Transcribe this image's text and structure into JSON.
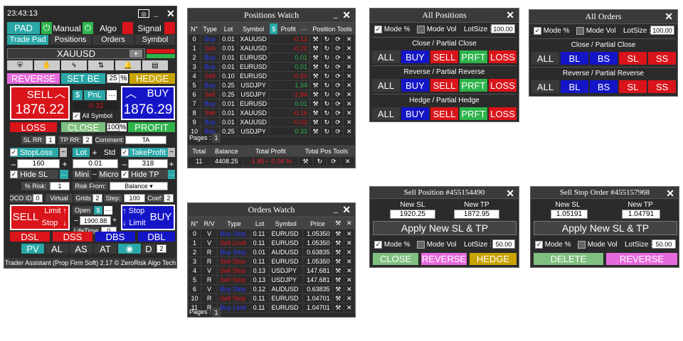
{
  "pad": {
    "clock": "23:43:13",
    "title_icons": [
      "minimize-icon",
      "close-icon"
    ],
    "top": {
      "pad": "PAD",
      "manual": "Manual",
      "algo": "Algo",
      "signal": "Signal"
    },
    "tabs": [
      "Trade Pad",
      "Positions",
      "Orders",
      "Symbol"
    ],
    "symbol": "XAUUSD",
    "reverse": "REVERSE",
    "set_be": "SET BE",
    "be_val": "25",
    "pct": "%",
    "hedge": "HEDGE",
    "sell": "SELL",
    "buy": "BUY",
    "dollar": "$",
    "pnl": "PnL",
    "dots": "···",
    "sell_price": "1876.22",
    "buy_price": "1876.29",
    "pnl_val": "-0.32",
    "all_symbol": "All Symbol",
    "loss": "LOSS",
    "close": "CLOSE",
    "close_pct": "100",
    "profit": "PROFIT",
    "sl_rr_lbl": "SL RR:",
    "sl_rr": "1",
    "tp_rr_lbl": "TP RR:",
    "tp_rr": "2",
    "comment_lbl": "Comment:",
    "comment": "TA",
    "stoploss": "StopLoss",
    "lot": "Lot",
    "std": "Std",
    "takeprofit": "TakeProfit",
    "sl_val": "160",
    "lot_val": "0.01",
    "tp_val": "318",
    "hide_sl": "Hide SL",
    "mini": "Mini",
    "micro": "Micro",
    "hide_tp": "Hide TP",
    "risk_lbl": "% Risk:",
    "risk": "1",
    "risk_from_lbl": "Risk From:",
    "risk_from": "Balance",
    "oco_lbl": "OCO ID:",
    "oco": "0",
    "virtual": "Virtual",
    "grids_lbl": "Grids",
    "grids": "2",
    "step_lbl": "Step:",
    "step": "100",
    "coef_lbl": "Coef:",
    "coef": "2",
    "open_lbl": "Open",
    "open_price": "1900.88",
    "lifetime_lbl": "LifeTime",
    "lifetime": "0",
    "limit": "Limit",
    "stop": "Stop",
    "dsl": "DSL",
    "dss": "DSS",
    "dbs": "DBS",
    "dbl": "DBL",
    "pv": "PV",
    "al": "AL",
    "as": "AS",
    "at": "AT",
    "d": "D",
    "d_val": "2",
    "footer": "Trader Assistant (Prop Firm Soft) 2.17 © ZeroRisk Algo Tech"
  },
  "positions_watch": {
    "title": "Positions Watch",
    "headers": [
      "N°",
      "Type",
      "Lot",
      "Symbol",
      "$",
      "Profit",
      "···",
      "Position Tools"
    ],
    "rows": [
      [
        "0",
        "Buy",
        "0.01",
        "XAUUSD",
        "-0.13"
      ],
      [
        "1",
        "Sell",
        "0.01",
        "XAUUSD",
        "-0.20"
      ],
      [
        "2",
        "Buy",
        "0.01",
        "EURUSD",
        "0.01"
      ],
      [
        "3",
        "Buy",
        "0.01",
        "EURUSD",
        "0.01"
      ],
      [
        "4",
        "Sell",
        "0.10",
        "EURUSD",
        "-0.20"
      ],
      [
        "5",
        "Buy",
        "0.25",
        "USDJPY",
        "1.34"
      ],
      [
        "6",
        "Sell",
        "0.25",
        "USDJPY",
        "-2.84"
      ],
      [
        "7",
        "Buy",
        "0.01",
        "EURUSD",
        "0.01"
      ],
      [
        "8",
        "Sell",
        "0.01",
        "XAUUSD",
        "-0.16"
      ],
      [
        "9",
        "Buy",
        "0.01",
        "XAUUSD",
        "-0.02"
      ],
      [
        "10",
        "Buy",
        "0.25",
        "USDJPY",
        "0.33"
      ]
    ],
    "pages_lbl": "Pages :",
    "page": "1",
    "total_headers": [
      "Total",
      "Balance",
      "Total Profit",
      "Total Pos Tools"
    ],
    "total_row": [
      "11",
      "4408.25",
      "-1.85 / -0.04 %"
    ]
  },
  "orders_watch": {
    "title": "Orders Watch",
    "headers": [
      "N°",
      "R/V",
      "Type",
      "Lot",
      "Symbol",
      "Price"
    ],
    "rows": [
      [
        "0",
        "V",
        "Buy Stop",
        "0.11",
        "EURUSD",
        "1.05350"
      ],
      [
        "1",
        "V",
        "Sell Limit",
        "0.11",
        "EURUSD",
        "1.05350"
      ],
      [
        "2",
        "R",
        "Buy Stop",
        "0.01",
        "AUDUSD",
        "0.63835"
      ],
      [
        "3",
        "R",
        "Sell Stop",
        "0.11",
        "EURUSD",
        "1.05350"
      ],
      [
        "4",
        "V",
        "Sell Stop",
        "0.13",
        "USDJPY",
        "147.681"
      ],
      [
        "5",
        "R",
        "Sell Stop",
        "0.13",
        "USDJPY",
        "147.681"
      ],
      [
        "6",
        "V",
        "Buy Stop",
        "0.12",
        "AUDUSD",
        "0.63835"
      ],
      [
        "10",
        "R",
        "Sell Stop",
        "0.11",
        "EURUSD",
        "1.04701"
      ],
      [
        "11",
        "R",
        "Buy Limit",
        "0.11",
        "EURUSD",
        "1.04701"
      ]
    ],
    "pages_lbl": "Pages :",
    "page": "1"
  },
  "all_positions": {
    "title": "All Positions",
    "mode_pct": "Mode %",
    "mode_vol": "Mode Vol",
    "lotsize_lbl": "LotSize :",
    "lotsize": "100.00",
    "sections": [
      {
        "title": "Close / Partial Close",
        "buttons": [
          "ALL",
          "BUY",
          "SELL",
          "PRFT",
          "LOSS"
        ]
      },
      {
        "title": "Reverse / Partial Reverse",
        "buttons": [
          "ALL",
          "BUY",
          "SELL",
          "PRFT",
          "LOSS"
        ]
      },
      {
        "title": "Hedge / Partial Hedge",
        "buttons": [
          "ALL",
          "BUY",
          "SELL",
          "PRFT",
          "LOSS"
        ]
      }
    ]
  },
  "all_orders": {
    "title": "All Orders",
    "mode_pct": "Mode %",
    "mode_vol": "Mode Vol",
    "lotsize_lbl": "LotSize :",
    "lotsize": "100.00",
    "sections": [
      {
        "title": "Close / Partial Close",
        "buttons": [
          "ALL",
          "BL",
          "BS",
          "SL",
          "SS"
        ]
      },
      {
        "title": "Reverse / Partial Reverse",
        "buttons": [
          "ALL",
          "BL",
          "BS",
          "SL",
          "SS"
        ]
      }
    ]
  },
  "sell_position": {
    "title": "Sell Position #455154490",
    "new_sl_lbl": "New SL",
    "new_tp_lbl": "New TP",
    "new_sl": "1920.25",
    "new_tp": "1872.95",
    "apply": "Apply New SL & TP",
    "mode_pct": "Mode %",
    "mode_vol": "Mode Vol",
    "lotsize_lbl": "LotSize :",
    "lotsize": "50.00",
    "close": "CLOSE",
    "reverse": "REVERSE",
    "hedge": "HEDGE"
  },
  "sell_stop": {
    "title": "Sell Stop Order #455157968",
    "new_sl_lbl": "New SL",
    "new_tp_lbl": "New TP",
    "new_sl": "1.05191",
    "new_tp": "1.04791",
    "apply": "Apply New SL & TP",
    "mode_pct": "Mode %",
    "mode_vol": "Mode Vol",
    "lotsize_lbl": "LotSize :",
    "lotsize": "50.00",
    "delete": "DELETE",
    "reverse": "REVERSE"
  },
  "colors": {
    "green": "#2db34a",
    "red": "#d9141a",
    "blue": "#1515c8",
    "teal": "#2aa7a7",
    "gold": "#c9a400",
    "pink": "#e66adb",
    "lightgreen": "#7fbf7f",
    "navy": "#00008b"
  }
}
